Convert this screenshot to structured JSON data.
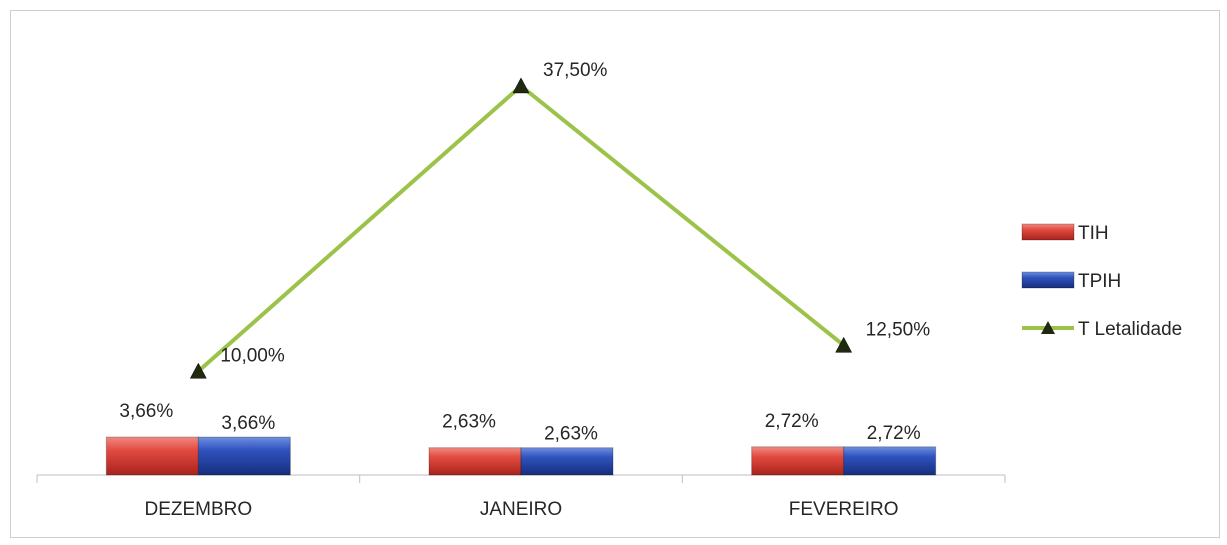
{
  "chart_data": {
    "type": "bar",
    "categories": [
      "DEZEMBRO",
      "JANEIRO",
      "FEVEREIRO"
    ],
    "series": [
      {
        "name": "TIH",
        "kind": "bar",
        "color": "#e0423a",
        "values": [
          3.66,
          2.63,
          2.72
        ],
        "labels": [
          "3,66%",
          "2,63%",
          "2,72%"
        ]
      },
      {
        "name": "TPIH",
        "kind": "bar",
        "color": "#2d4fb5",
        "values": [
          3.66,
          2.63,
          2.72
        ],
        "labels": [
          "3,66%",
          "2,63%",
          "2,72%"
        ]
      },
      {
        "name": "T Letalidade",
        "kind": "line",
        "color": "#9bc34a",
        "marker_color": "#1f2a10",
        "values": [
          10.0,
          37.5,
          12.5
        ],
        "labels": [
          "10,00%",
          "37,50%",
          "12,50%"
        ]
      }
    ],
    "ylim": [
      0,
      40
    ],
    "grid": false,
    "legend": "right"
  }
}
